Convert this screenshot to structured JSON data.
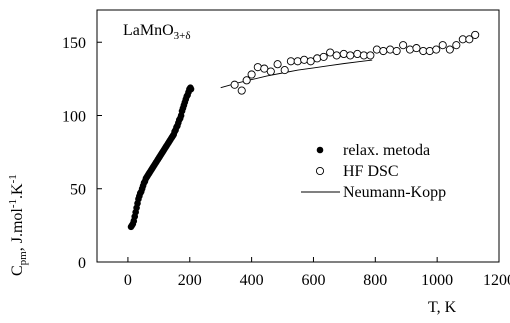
{
  "chart_data": {
    "type": "scatter",
    "title": "LaMnO",
    "title_sub": "3+δ",
    "xlabel": "T, K",
    "ylabel": {
      "c": "C",
      "sub": "pm",
      "rest": ", J.mol",
      "sup1": "-1",
      "mid": ".K",
      "sup2": "-1"
    },
    "xlim": [
      -100,
      1200
    ],
    "ylim": [
      0,
      172
    ],
    "x_ticks": [
      0,
      200,
      400,
      600,
      800,
      1000,
      1200
    ],
    "y_ticks": [
      0,
      50,
      100,
      150
    ],
    "legend_position": "right",
    "legend": [
      {
        "label": "relax. metoda",
        "marker": "filled-circle"
      },
      {
        "label": "HF DSC",
        "marker": "open-circle"
      },
      {
        "label": "Neumann-Kopp",
        "marker": "line"
      }
    ],
    "series": [
      {
        "name": "relax. metoda",
        "marker": "filled-circle",
        "points": [
          [
            10,
            24
          ],
          [
            13,
            25
          ],
          [
            16,
            26
          ],
          [
            19,
            28
          ],
          [
            22,
            31
          ],
          [
            25,
            34
          ],
          [
            28,
            37
          ],
          [
            31,
            40
          ],
          [
            34,
            43
          ],
          [
            37,
            45
          ],
          [
            40,
            47
          ],
          [
            43,
            48
          ],
          [
            46,
            50
          ],
          [
            49,
            52
          ],
          [
            52,
            54
          ],
          [
            55,
            55
          ],
          [
            58,
            57
          ],
          [
            61,
            58
          ],
          [
            64,
            59
          ],
          [
            67,
            60
          ],
          [
            70,
            61
          ],
          [
            73,
            62
          ],
          [
            76,
            63
          ],
          [
            79,
            64
          ],
          [
            82,
            65
          ],
          [
            85,
            66
          ],
          [
            88,
            67
          ],
          [
            91,
            68
          ],
          [
            94,
            69
          ],
          [
            97,
            70
          ],
          [
            100,
            71
          ],
          [
            103,
            72
          ],
          [
            106,
            73
          ],
          [
            109,
            74
          ],
          [
            112,
            75
          ],
          [
            115,
            76
          ],
          [
            118,
            77
          ],
          [
            121,
            78
          ],
          [
            124,
            79
          ],
          [
            127,
            80
          ],
          [
            130,
            81
          ],
          [
            133,
            82
          ],
          [
            136,
            83
          ],
          [
            139,
            84
          ],
          [
            142,
            85
          ],
          [
            145,
            86
          ],
          [
            148,
            87
          ],
          [
            151,
            89
          ],
          [
            154,
            90
          ],
          [
            157,
            92
          ],
          [
            160,
            93
          ],
          [
            163,
            95
          ],
          [
            166,
            97
          ],
          [
            169,
            98
          ],
          [
            172,
            100
          ],
          [
            175,
            103
          ],
          [
            178,
            105
          ],
          [
            181,
            107
          ],
          [
            184,
            109
          ],
          [
            187,
            111
          ],
          [
            190,
            113
          ],
          [
            193,
            114
          ],
          [
            196,
            116
          ],
          [
            199,
            118
          ],
          [
            202,
            119
          ],
          [
            204,
            118
          ]
        ]
      },
      {
        "name": "HF DSC",
        "marker": "open-circle",
        "points": [
          [
            345,
            121
          ],
          [
            368,
            117
          ],
          [
            384,
            124
          ],
          [
            400,
            128
          ],
          [
            420,
            133
          ],
          [
            441,
            132
          ],
          [
            462,
            130
          ],
          [
            484,
            135
          ],
          [
            507,
            131
          ],
          [
            527,
            137
          ],
          [
            549,
            137
          ],
          [
            570,
            138
          ],
          [
            591,
            137
          ],
          [
            612,
            139
          ],
          [
            633,
            140
          ],
          [
            654,
            143
          ],
          [
            675,
            141
          ],
          [
            698,
            142
          ],
          [
            719,
            141
          ],
          [
            742,
            142
          ],
          [
            763,
            141
          ],
          [
            784,
            141
          ],
          [
            805,
            145
          ],
          [
            826,
            144
          ],
          [
            848,
            145
          ],
          [
            869,
            144
          ],
          [
            890,
            148
          ],
          [
            912,
            145
          ],
          [
            933,
            146
          ],
          [
            955,
            144
          ],
          [
            976,
            144
          ],
          [
            997,
            145
          ],
          [
            1018,
            148
          ],
          [
            1041,
            145
          ],
          [
            1062,
            148
          ],
          [
            1083,
            152
          ],
          [
            1104,
            152
          ],
          [
            1123,
            155
          ]
        ]
      },
      {
        "name": "Neumann-Kopp",
        "marker": "line",
        "points": [
          [
            300,
            119
          ],
          [
            350,
            122
          ],
          [
            400,
            124.5
          ],
          [
            450,
            127
          ],
          [
            500,
            129
          ],
          [
            550,
            131
          ],
          [
            600,
            132.5
          ],
          [
            650,
            134
          ],
          [
            700,
            135.5
          ],
          [
            750,
            136.8
          ],
          [
            790,
            137.8
          ]
        ]
      }
    ]
  }
}
